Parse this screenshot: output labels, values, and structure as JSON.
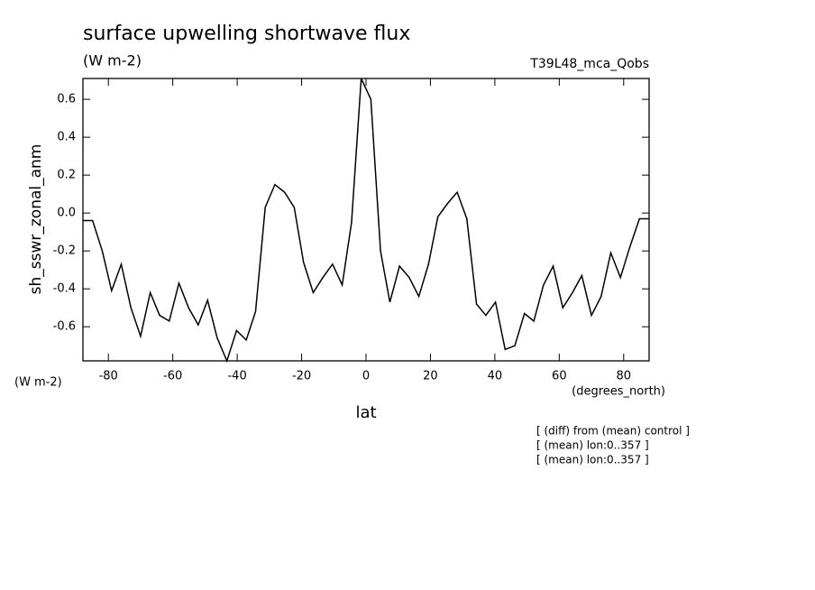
{
  "chart_data": {
    "type": "line",
    "title": "surface upwelling shortwave flux",
    "subtitle": "(W m-2)",
    "dataset": "T39L48_mca_Qobs",
    "y_label": "sh_sswr_zonal_anm",
    "y_units": "(W m-2)",
    "x_units": "(degrees_north)",
    "x_label": "lat",
    "notes": [
      "[ (diff) from (mean) control ]",
      "[ (mean) lon:0..357 ]",
      "[ (mean) lon:0..357 ]"
    ],
    "x": [
      -87.9,
      -84.9,
      -81.9,
      -79.0,
      -76.0,
      -73.0,
      -70.0,
      -67.0,
      -64.1,
      -61.1,
      -58.1,
      -55.1,
      -52.1,
      -49.2,
      -46.2,
      -43.2,
      -40.2,
      -37.2,
      -34.3,
      -31.3,
      -28.3,
      -25.3,
      -22.3,
      -19.4,
      -16.4,
      -13.4,
      -10.4,
      -7.4,
      -4.5,
      -1.5,
      1.5,
      4.5,
      7.4,
      10.4,
      13.4,
      16.4,
      19.4,
      22.3,
      25.3,
      28.3,
      31.3,
      34.3,
      37.2,
      40.2,
      43.2,
      46.2,
      49.2,
      52.1,
      55.1,
      58.1,
      61.1,
      64.1,
      67.0,
      70.0,
      73.0,
      76.0,
      79.0,
      81.9,
      84.9,
      87.9
    ],
    "series": [
      {
        "name": "sh_sswr_zonal_anm",
        "color": "#000000",
        "values": [
          -0.04,
          -0.04,
          -0.2,
          -0.41,
          -0.27,
          -0.5,
          -0.65,
          -0.42,
          -0.54,
          -0.57,
          -0.37,
          -0.5,
          -0.59,
          -0.46,
          -0.66,
          -0.78,
          -0.62,
          -0.67,
          -0.52,
          0.03,
          0.15,
          0.11,
          0.03,
          -0.26,
          -0.42,
          -0.34,
          -0.27,
          -0.38,
          -0.05,
          0.71,
          0.6,
          -0.2,
          -0.47,
          -0.28,
          -0.34,
          -0.44,
          -0.27,
          -0.02,
          0.05,
          0.11,
          -0.03,
          -0.48,
          -0.54,
          -0.47,
          -0.72,
          -0.7,
          -0.53,
          -0.57,
          -0.38,
          -0.28,
          -0.5,
          -0.42,
          -0.33,
          -0.54,
          -0.44,
          -0.21,
          -0.34,
          -0.18,
          -0.03,
          -0.03
        ]
      }
    ],
    "xlim": [
      -87.9,
      87.9
    ],
    "xticks": [
      -80,
      -60,
      -40,
      -20,
      0,
      20,
      40,
      60,
      80
    ],
    "ylim": [
      -0.78,
      0.71
    ],
    "yticks": [
      -0.6,
      -0.4,
      -0.2,
      {
        "value": 0,
        "label": "0.0"
      },
      0.2,
      0.4,
      0.6
    ],
    "grid": false
  }
}
